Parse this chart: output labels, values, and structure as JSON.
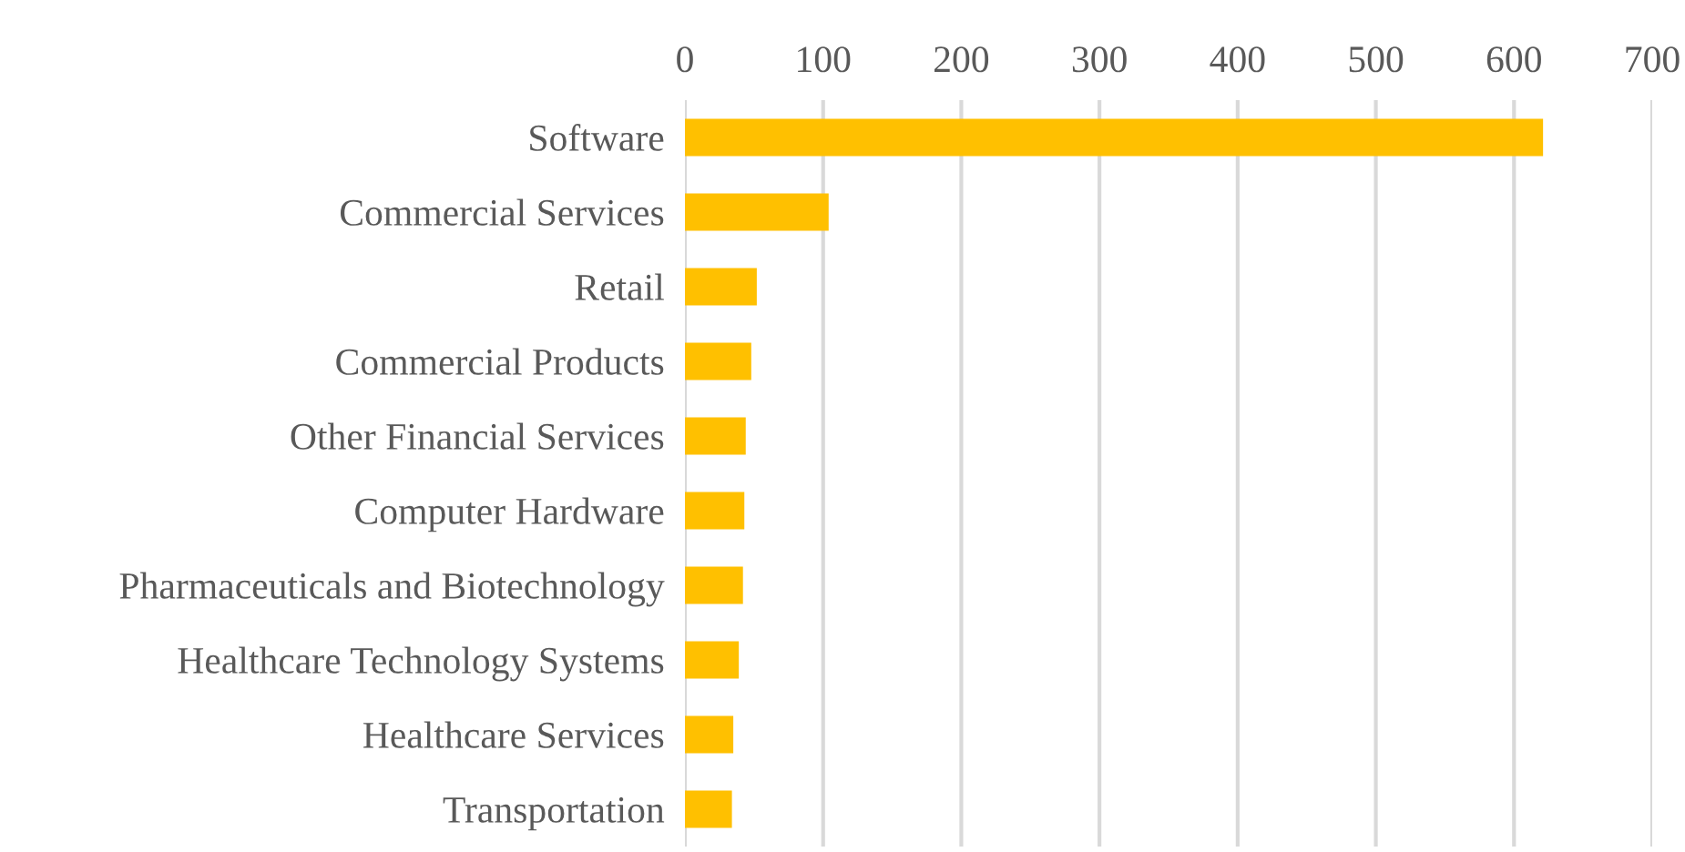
{
  "chart_data": {
    "type": "bar",
    "orientation": "horizontal",
    "categories": [
      "Software",
      "Commercial Services",
      "Retail",
      "Commercial Products",
      "Other Financial Services",
      "Computer Hardware",
      "Pharmaceuticals and Biotechnology",
      "Healthcare Technology Systems",
      "Healthcare Services",
      "Transportation"
    ],
    "values": [
      621,
      104,
      52,
      48,
      44,
      43,
      42,
      39,
      35,
      34
    ],
    "color": "#ffc000",
    "xlim": [
      0,
      700
    ],
    "xticks": [
      0,
      100,
      200,
      300,
      400,
      500,
      600,
      700
    ],
    "grid": "x",
    "legend": false
  }
}
